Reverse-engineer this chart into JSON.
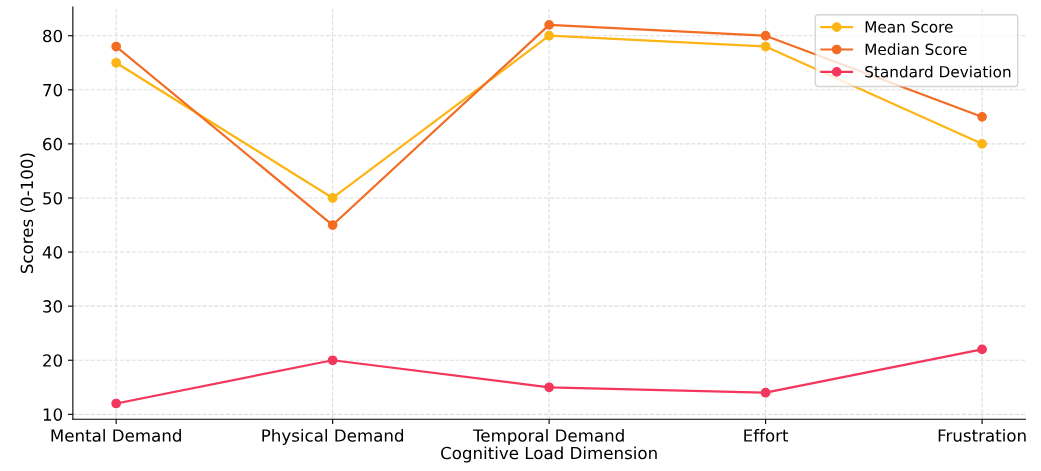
{
  "chart_data": {
    "type": "line",
    "xlabel": "Cognitive Load Dimension",
    "ylabel": "Scores (0-100)",
    "categories": [
      "Mental Demand",
      "Physical Demand",
      "Temporal Demand",
      "Effort",
      "Frustration"
    ],
    "series": [
      {
        "name": "Mean Score",
        "color": "#fdb515",
        "values": [
          75,
          50,
          80,
          78,
          60
        ]
      },
      {
        "name": "Median Score",
        "color": "#f36c24",
        "values": [
          78,
          45,
          82,
          80,
          65
        ]
      },
      {
        "name": "Standard Deviation",
        "color": "#f5365c",
        "values": [
          12,
          20,
          15,
          14,
          22
        ]
      }
    ],
    "ylim": [
      9.1,
      85.3
    ],
    "yticks": [
      10,
      20,
      30,
      40,
      50,
      60,
      70,
      80
    ],
    "grid": true,
    "legend": "top right",
    "marker": "circle",
    "line_style": "solid"
  }
}
